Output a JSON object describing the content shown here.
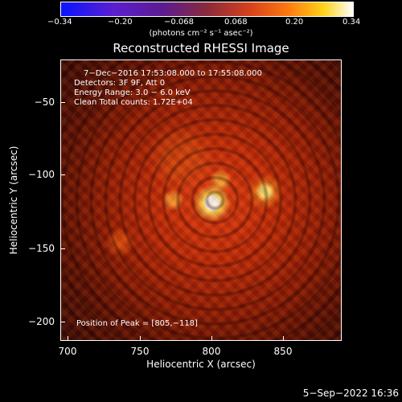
{
  "colorbar": {
    "ticks": [
      "−0.34",
      "−0.20",
      "−0.068",
      "0.068",
      "0.20",
      "0.34"
    ],
    "unit_label": "(photons cm⁻² s⁻¹ asec⁻²)",
    "colors": [
      "#0a14ff",
      "#5d1b8f",
      "#d7421b",
      "#ff7a10",
      "#ffd21a",
      "#ffffff"
    ]
  },
  "title": "Reconstructed RHESSI Image",
  "info": {
    "line1": "7−Dec−2016 17:53:08.000 to 17:55:08.000",
    "line2": "Detectors: 3F 9F, Att 0",
    "line3": "Energy Range: 3.0 − 6.0 keV",
    "line4": "Clean     Total counts: 1.72E+04"
  },
  "peak_text": "Position of Peak = [805,−118]",
  "axes": {
    "x_label": "Heliocentric X (arcsec)",
    "y_label": "Heliocentric Y (arcsec)",
    "x_ticks": [
      "700",
      "750",
      "800",
      "850"
    ],
    "y_ticks": [
      "−50",
      "−100",
      "−150",
      "−200"
    ]
  },
  "timestamp": "5−Sep−2022 16:36"
}
